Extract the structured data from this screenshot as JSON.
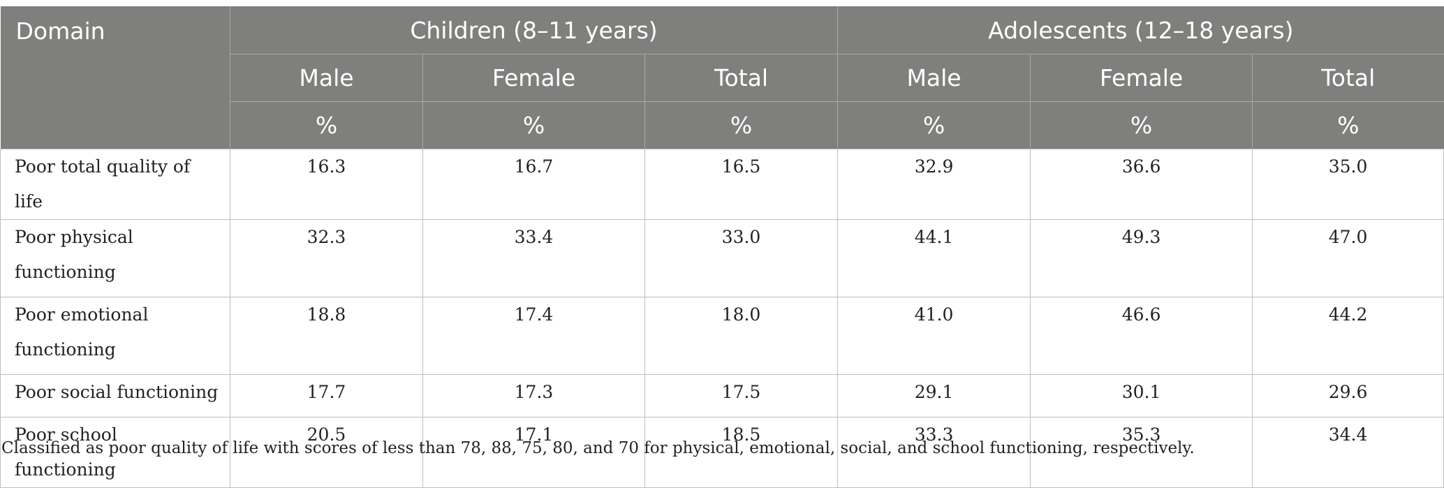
{
  "table": {
    "header": {
      "domain": "Domain",
      "groups": [
        "Children (8–11 years)",
        "Adolescents (12–18 years)"
      ],
      "subheaders": [
        "Male",
        "Female",
        "Total",
        "Male",
        "Female",
        "Total"
      ],
      "units": [
        "%",
        "%",
        "%",
        "%",
        "%",
        "%"
      ]
    },
    "rows": [
      {
        "label": "Poor total quality of life",
        "values": [
          "16.3",
          "16.7",
          "16.5",
          "32.9",
          "36.6",
          "35.0"
        ]
      },
      {
        "label": "Poor physical functioning",
        "values": [
          "32.3",
          "33.4",
          "33.0",
          "44.1",
          "49.3",
          "47.0"
        ]
      },
      {
        "label": "Poor emotional functioning",
        "values": [
          "18.8",
          "17.4",
          "18.0",
          "41.0",
          "46.6",
          "44.2"
        ]
      },
      {
        "label": "Poor social functioning",
        "values": [
          "17.7",
          "17.3",
          "17.5",
          "29.1",
          "30.1",
          "29.6"
        ]
      },
      {
        "label": "Poor school functioning",
        "values": [
          "20.5",
          "17.1",
          "18.5",
          "33.3",
          "35.3",
          "34.4"
        ]
      }
    ],
    "footnote": "Classified as poor quality of life with scores of less than 78, 88, 75, 80, and 70 for physical, emotional, social, and school functioning, respectively."
  },
  "colors": {
    "header_bg": "#7f807e",
    "header_text": "#ffffff",
    "grid": "#bdbdbd"
  }
}
